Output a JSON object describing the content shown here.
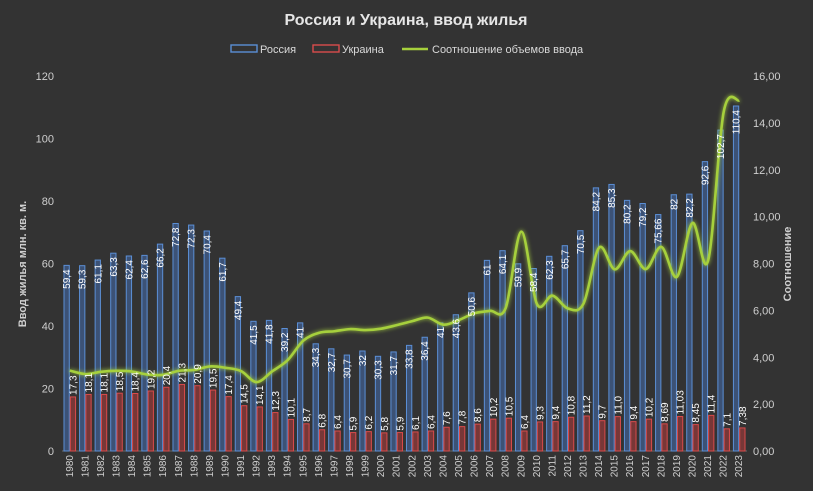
{
  "chart_data": {
    "type": "bar",
    "title": "Россия и Украина, ввод жилья",
    "ylabel": "Ввод жилья млн. кв. м.",
    "y2label": "Соотношение",
    "ylim": [
      0,
      120
    ],
    "y2lim": [
      0,
      16
    ],
    "yticks": [
      "0",
      "20",
      "40",
      "60",
      "80",
      "100",
      "120"
    ],
    "y2ticks": [
      "0,00",
      "2,00",
      "4,00",
      "6,00",
      "8,00",
      "10,00",
      "12,00",
      "14,00",
      "16,00"
    ],
    "legend_position": "top",
    "grid": false,
    "categories": [
      "1980",
      "1981",
      "1982",
      "1983",
      "1984",
      "1985",
      "1986",
      "1987",
      "1988",
      "1989",
      "1990",
      "1991",
      "1992",
      "1993",
      "1994",
      "1995",
      "1996",
      "1997",
      "1998",
      "1999",
      "2000",
      "2001",
      "2002",
      "2003",
      "2004",
      "2005",
      "2006",
      "2007",
      "2008",
      "2009",
      "2010",
      "2011",
      "2012",
      "2013",
      "2014",
      "2015",
      "2016",
      "2017",
      "2018",
      "2019",
      "2020",
      "2021",
      "2022",
      "2023"
    ],
    "series": [
      {
        "name": "Россия",
        "type": "bar",
        "color": "#5b8fd6",
        "values": [
          59.4,
          59.3,
          61.1,
          63.3,
          62.4,
          62.6,
          66.2,
          72.8,
          72.3,
          70.4,
          61.7,
          49.4,
          41.5,
          41.8,
          39.2,
          41,
          34.3,
          32.7,
          30.7,
          32,
          30.3,
          31.7,
          33.8,
          36.4,
          41,
          43.6,
          50.6,
          61,
          64.1,
          59.9,
          58.4,
          62.3,
          65.7,
          70.5,
          84.2,
          85.3,
          80.2,
          79.2,
          75.66,
          82,
          82.2,
          92.6,
          102.7,
          110.4
        ],
        "labels": [
          "59,4",
          "59,3",
          "61,1",
          "63,3",
          "62,4",
          "62,6",
          "66,2",
          "72,8",
          "72,3",
          "70,4",
          "61,7",
          "49,4",
          "41,5",
          "41,8",
          "39,2",
          "41",
          "34,3",
          "32,7",
          "30,7",
          "32",
          "30,3",
          "31,7",
          "33,8",
          "36,4",
          "41",
          "43,6",
          "50,6",
          "61",
          "64,1",
          "59,9",
          "58,4",
          "62,3",
          "65,7",
          "70,5",
          "84,2",
          "85,3",
          "80,2",
          "79,2",
          "75,66",
          "82",
          "82,2",
          "92,6",
          "102,7",
          "110,4"
        ]
      },
      {
        "name": "Украина",
        "type": "bar",
        "color": "#d94b4b",
        "values": [
          17.3,
          18.1,
          18.1,
          18.5,
          18.4,
          19.2,
          20.4,
          21.3,
          20.9,
          19.5,
          17.4,
          14.5,
          14.1,
          12.3,
          10.1,
          8.7,
          6.8,
          6.4,
          5.9,
          6.2,
          5.8,
          5.9,
          6.1,
          6.4,
          7.6,
          7.8,
          8.6,
          10.2,
          10.5,
          6.4,
          9.3,
          9.4,
          10.8,
          11.2,
          9.7,
          11.0,
          9.4,
          10.2,
          8.69,
          11.03,
          8.45,
          11.4,
          7.1,
          7.38
        ],
        "labels": [
          "17,3",
          "18,1",
          "18,1",
          "18,5",
          "18,4",
          "19,2",
          "20,4",
          "21,3",
          "20,9",
          "19,5",
          "17,4",
          "14,5",
          "14,1",
          "12,3",
          "10,1",
          "8,7",
          "6,8",
          "6,4",
          "5,9",
          "6,2",
          "5,8",
          "5,9",
          "6,1",
          "6,4",
          "7,6",
          "7,8",
          "8,6",
          "10,2",
          "10,5",
          "6,4",
          "9,3",
          "9,4",
          "10,8",
          "11,2",
          "9,7",
          "11,0",
          "9,4",
          "10,2",
          "8,69",
          "11,03",
          "8,45",
          "11,4",
          "7,1",
          "7,38"
        ]
      },
      {
        "name": "Соотношение объемов ввода",
        "type": "line",
        "axis": "right",
        "color": "#a6d03c",
        "values": [
          3.43,
          3.28,
          3.38,
          3.42,
          3.39,
          3.26,
          3.25,
          3.42,
          3.46,
          3.61,
          3.55,
          3.41,
          2.94,
          3.4,
          3.88,
          4.71,
          5.04,
          5.11,
          5.2,
          5.16,
          5.22,
          5.37,
          5.54,
          5.69,
          5.39,
          5.59,
          5.88,
          5.98,
          6.1,
          9.36,
          6.28,
          6.63,
          6.08,
          6.29,
          8.68,
          7.75,
          8.53,
          7.76,
          8.71,
          7.43,
          9.73,
          8.12,
          14.46,
          14.96
        ]
      }
    ]
  }
}
